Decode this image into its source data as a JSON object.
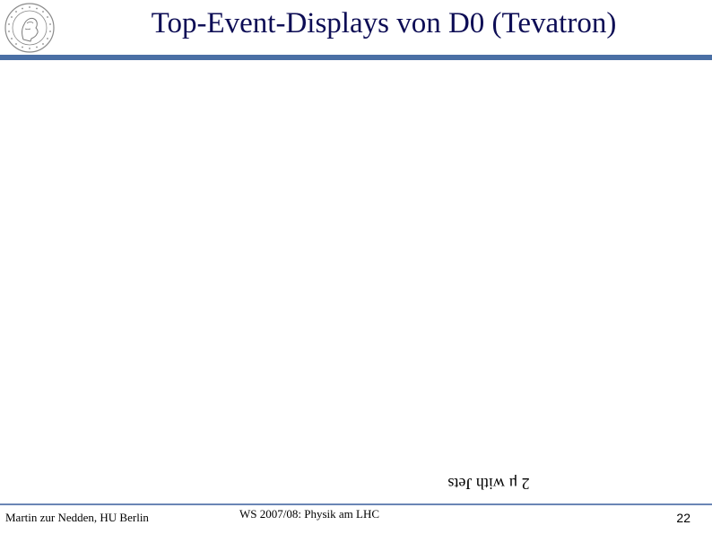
{
  "slide": {
    "title": "Top-Event-Displays von D0 (Tevatron)",
    "caption": "2 μ with Jets",
    "logo_icon": "university-seal-icon"
  },
  "footer": {
    "author": "Martin zur Nedden, HU Berlin",
    "course": "WS 2007/08: Physik am LHC",
    "page_number": "22"
  },
  "colors": {
    "title": "#0d0d55",
    "rule": "#4a6fa5"
  }
}
